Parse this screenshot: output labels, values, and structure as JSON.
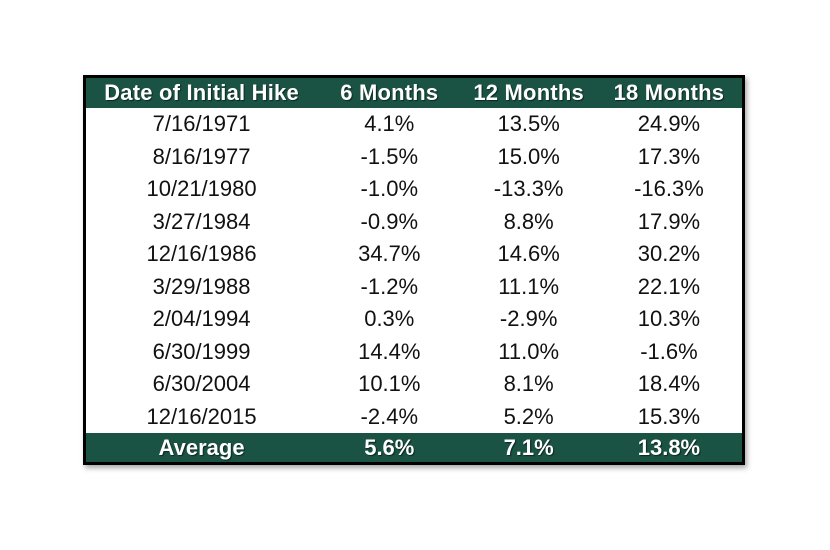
{
  "chart_data": {
    "type": "table",
    "title": "",
    "columns": [
      "Date of Initial Hike",
      "6 Months",
      "12 Months",
      "18 Months"
    ],
    "rows": [
      [
        "7/16/1971",
        "4.1%",
        "13.5%",
        "24.9%"
      ],
      [
        "8/16/1977",
        "-1.5%",
        "15.0%",
        "17.3%"
      ],
      [
        "10/21/1980",
        "-1.0%",
        "-13.3%",
        "-16.3%"
      ],
      [
        "3/27/1984",
        "-0.9%",
        "8.8%",
        "17.9%"
      ],
      [
        "12/16/1986",
        "34.7%",
        "14.6%",
        "30.2%"
      ],
      [
        "3/29/1988",
        "-1.2%",
        "11.1%",
        "22.1%"
      ],
      [
        "2/04/1994",
        "0.3%",
        "-2.9%",
        "10.3%"
      ],
      [
        "6/30/1999",
        "14.4%",
        "11.0%",
        "-1.6%"
      ],
      [
        "6/30/2004",
        "10.1%",
        "8.1%",
        "18.4%"
      ],
      [
        "12/16/2015",
        "-2.4%",
        "5.2%",
        "15.3%"
      ]
    ],
    "footer": [
      "Average",
      "5.6%",
      "7.1%",
      "13.8%"
    ],
    "colors": {
      "header_bg": "#1a5344",
      "header_text": "#ffffff",
      "body_text": "#111111",
      "border": "#000000",
      "background": "#ffffff"
    },
    "layout": {
      "legend": "none",
      "grid": "column-borders-only",
      "column_align": "center"
    }
  }
}
